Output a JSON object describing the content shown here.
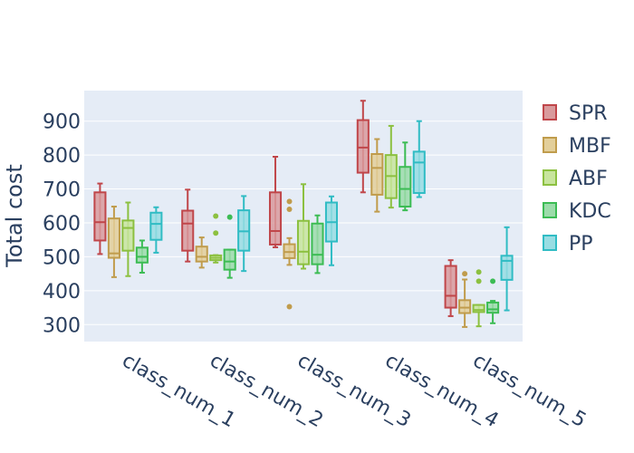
{
  "chart_data": {
    "type": "box",
    "ylabel": "Total cost",
    "xlabel": "",
    "ylim": [
      250,
      990
    ],
    "yticks": [
      300,
      400,
      500,
      600,
      700,
      800,
      900
    ],
    "ytick_labels": [
      "300",
      "400",
      "500",
      "600",
      "700",
      "800",
      "900"
    ],
    "categories": [
      "class_num_1",
      "class_num_2",
      "class_num_3",
      "class_num_4",
      "class_num_5"
    ],
    "legend_position": "right",
    "series": [
      {
        "name": "SPR",
        "color": "#c0464a",
        "fill": "#d99a9c",
        "boxes": [
          {
            "min": 508,
            "q1": 548,
            "median": 602,
            "q3": 690,
            "max": 716,
            "outliers": []
          },
          {
            "min": 486,
            "q1": 518,
            "median": 598,
            "q3": 636,
            "max": 698,
            "outliers": []
          },
          {
            "min": 528,
            "q1": 536,
            "median": 576,
            "q3": 690,
            "max": 795,
            "outliers": []
          },
          {
            "min": 690,
            "q1": 748,
            "median": 822,
            "q3": 903,
            "max": 960,
            "outliers": []
          },
          {
            "min": 325,
            "q1": 350,
            "median": 385,
            "q3": 473,
            "max": 490,
            "outliers": []
          }
        ]
      },
      {
        "name": "MBF",
        "color": "#c09c4c",
        "fill": "#e3cf9a",
        "boxes": [
          {
            "min": 440,
            "q1": 497,
            "median": 510,
            "q3": 613,
            "max": 648,
            "outliers": []
          },
          {
            "min": 468,
            "q1": 486,
            "median": 500,
            "q3": 530,
            "max": 557,
            "outliers": []
          },
          {
            "min": 476,
            "q1": 496,
            "median": 514,
            "q3": 537,
            "max": 555,
            "outliers": [
              353,
              640,
              663
            ]
          },
          {
            "min": 633,
            "q1": 683,
            "median": 762,
            "q3": 803,
            "max": 847,
            "outliers": []
          },
          {
            "min": 293,
            "q1": 334,
            "median": 350,
            "q3": 372,
            "max": 433,
            "outliers": [
              450
            ]
          }
        ]
      },
      {
        "name": "ABF",
        "color": "#8cc040",
        "fill": "#c8e59d",
        "boxes": [
          {
            "min": 443,
            "q1": 518,
            "median": 585,
            "q3": 607,
            "max": 660,
            "outliers": []
          },
          {
            "min": 483,
            "q1": 490,
            "median": 497,
            "q3": 504,
            "max": 505,
            "outliers": [
              570,
              620
            ]
          },
          {
            "min": 465,
            "q1": 478,
            "median": 515,
            "q3": 606,
            "max": 714,
            "outliers": []
          },
          {
            "min": 645,
            "q1": 673,
            "median": 738,
            "q3": 800,
            "max": 886,
            "outliers": []
          },
          {
            "min": 295,
            "q1": 337,
            "median": 343,
            "q3": 358,
            "max": 358,
            "outliers": [
              428,
              455
            ]
          }
        ]
      },
      {
        "name": "KDC",
        "color": "#3cbc54",
        "fill": "#9cdcaa",
        "boxes": [
          {
            "min": 453,
            "q1": 483,
            "median": 500,
            "q3": 527,
            "max": 548,
            "outliers": []
          },
          {
            "min": 438,
            "q1": 462,
            "median": 486,
            "q3": 521,
            "max": 521,
            "outliers": [
              617
            ]
          },
          {
            "min": 452,
            "q1": 478,
            "median": 506,
            "q3": 598,
            "max": 622,
            "outliers": []
          },
          {
            "min": 637,
            "q1": 648,
            "median": 700,
            "q3": 765,
            "max": 837,
            "outliers": []
          },
          {
            "min": 304,
            "q1": 335,
            "median": 345,
            "q3": 365,
            "max": 370,
            "outliers": [
              428
            ]
          }
        ]
      },
      {
        "name": "PP",
        "color": "#30bcc4",
        "fill": "#98dde3",
        "boxes": [
          {
            "min": 512,
            "q1": 550,
            "median": 597,
            "q3": 630,
            "max": 646,
            "outliers": []
          },
          {
            "min": 458,
            "q1": 518,
            "median": 575,
            "q3": 637,
            "max": 679,
            "outliers": []
          },
          {
            "min": 475,
            "q1": 545,
            "median": 602,
            "q3": 660,
            "max": 678,
            "outliers": []
          },
          {
            "min": 676,
            "q1": 688,
            "median": 778,
            "q3": 810,
            "max": 900,
            "outliers": []
          },
          {
            "min": 342,
            "q1": 432,
            "median": 488,
            "q3": 503,
            "max": 587,
            "outliers": []
          }
        ]
      }
    ]
  }
}
